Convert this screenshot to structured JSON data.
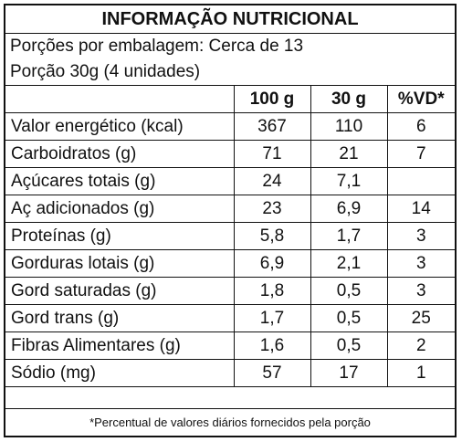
{
  "label": {
    "title": "INFORMAÇÃO NUTRICIONAL",
    "servings_per_package": "Porções por embalagem: Cerca de 13",
    "serving_size": "Porção 30g (4 unidades)",
    "columns": [
      "",
      "100 g",
      "30 g",
      "%VD*"
    ],
    "rows": [
      {
        "name": "Valor energético (kcal)",
        "per100": "367",
        "per30": "110",
        "vd": "6"
      },
      {
        "name": "Carboidratos (g)",
        "per100": "71",
        "per30": "21",
        "vd": "7"
      },
      {
        "name": "Açúcares totais (g)",
        "per100": "24",
        "per30": "7,1",
        "vd": ""
      },
      {
        "name": "Aç adicionados (g)",
        "per100": "23",
        "per30": "6,9",
        "vd": "14"
      },
      {
        "name": "Proteínas (g)",
        "per100": "5,8",
        "per30": "1,7",
        "vd": "3"
      },
      {
        "name": "Gorduras lotais (g)",
        "per100": "6,9",
        "per30": "2,1",
        "vd": "3"
      },
      {
        "name": "Gord saturadas (g)",
        "per100": "1,8",
        "per30": "0,5",
        "vd": "3"
      },
      {
        "name": "Gord trans (g)",
        "per100": "1,7",
        "per30": "0,5",
        "vd": "25"
      },
      {
        "name": "Fibras Alimentares (g)",
        "per100": "1,6",
        "per30": "0,5",
        "vd": "2"
      },
      {
        "name": "Sódio (mg)",
        "per100": "57",
        "per30": "17",
        "vd": "1"
      }
    ],
    "footnote": "*Percentual de valores diários fornecidos pela porção"
  }
}
